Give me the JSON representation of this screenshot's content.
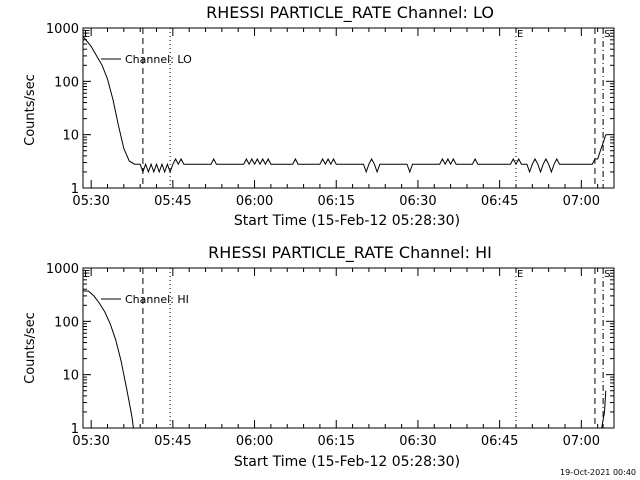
{
  "timestamp": "19-Oct-2021 00:40",
  "colors": {
    "background": "#ffffff",
    "foreground": "#000000"
  },
  "chart_data": [
    {
      "type": "line",
      "title": "RHESSI PARTICLE_RATE Channel: LO",
      "xlabel": "Start Time (15-Feb-12 05:28:30)",
      "ylabel": "Counts/sec",
      "legend": "Channel: LO",
      "legend_placement": "top-left",
      "yscale": "log",
      "ylim": [
        1,
        1000
      ],
      "xlim": [
        "05:28:30",
        "07:06:00"
      ],
      "x_ticks": [
        "05:30",
        "05:45",
        "06:00",
        "06:15",
        "06:30",
        "06:45",
        "07:00"
      ],
      "y_ticks": [
        "1",
        "10",
        "100",
        "1000"
      ],
      "markers": [
        {
          "label": "E",
          "time": "05:28:30",
          "style": "solid"
        },
        {
          "label": "",
          "time": "05:39:30",
          "style": "dashed"
        },
        {
          "label": "",
          "time": "05:44:30",
          "style": "dotted"
        },
        {
          "label": "E",
          "time": "06:48:00",
          "style": "dotted"
        },
        {
          "label": "",
          "time": "07:02:30",
          "style": "dashed"
        },
        {
          "label": "S",
          "time": "07:04:00",
          "style": "dash-dot"
        }
      ],
      "series": [
        {
          "name": "Channel: LO",
          "x": [
            "05:28:30",
            "05:30:00",
            "05:31:00",
            "05:32:00",
            "05:33:00",
            "05:34:00",
            "05:35:00",
            "05:36:00",
            "05:37:00",
            "05:38:00",
            "05:39:00",
            "05:39:30",
            "05:40:00",
            "05:40:30",
            "05:41:00",
            "05:41:30",
            "05:42:00",
            "05:42:30",
            "05:43:00",
            "05:43:30",
            "05:44:00",
            "05:44:30",
            "05:45:00",
            "05:45:30",
            "05:46:00",
            "05:46:30",
            "05:47:00",
            "05:52:00",
            "05:52:30",
            "05:53:00",
            "05:58:00",
            "05:58:30",
            "05:59:00",
            "05:59:30",
            "06:00:00",
            "06:00:30",
            "06:01:00",
            "06:01:30",
            "06:02:00",
            "06:02:30",
            "06:03:00",
            "06:07:00",
            "06:07:30",
            "06:08:00",
            "06:12:00",
            "06:12:30",
            "06:13:00",
            "06:13:30",
            "06:14:00",
            "06:14:30",
            "06:15:00",
            "06:20:00",
            "06:20:30",
            "06:21:00",
            "06:21:30",
            "06:22:00",
            "06:22:30",
            "06:23:00",
            "06:28:00",
            "06:28:30",
            "06:29:00",
            "06:34:00",
            "06:34:30",
            "06:35:00",
            "06:35:30",
            "06:36:00",
            "06:36:30",
            "06:37:00",
            "06:40:00",
            "06:40:30",
            "06:41:00",
            "06:47:00",
            "06:47:30",
            "06:48:00",
            "06:48:30",
            "06:49:00",
            "06:50:00",
            "06:50:30",
            "06:51:00",
            "06:51:30",
            "06:52:00",
            "06:52:30",
            "06:53:00",
            "06:53:30",
            "06:54:00",
            "06:54:30",
            "06:55:00",
            "06:55:30",
            "06:56:00",
            "07:02:00",
            "07:02:30",
            "07:03:00",
            "07:03:30",
            "07:04:00",
            "07:04:30"
          ],
          "values": [
            700,
            450,
            300,
            200,
            110,
            45,
            15,
            5.5,
            3.2,
            2.8,
            2.8,
            2.0,
            2.8,
            2.0,
            2.8,
            2.0,
            2.8,
            2.0,
            2.8,
            2.0,
            2.8,
            2.0,
            2.8,
            3.5,
            2.8,
            3.5,
            2.8,
            2.8,
            3.5,
            2.8,
            2.8,
            3.5,
            2.8,
            3.5,
            2.8,
            3.5,
            2.8,
            3.5,
            2.8,
            3.5,
            2.8,
            2.8,
            3.5,
            2.8,
            2.8,
            3.5,
            2.8,
            3.5,
            2.8,
            3.5,
            2.8,
            2.8,
            2.0,
            2.8,
            3.5,
            2.8,
            2.0,
            2.8,
            2.8,
            2.0,
            2.8,
            2.8,
            3.5,
            2.8,
            3.5,
            2.8,
            3.5,
            2.8,
            2.8,
            3.5,
            2.8,
            2.8,
            3.5,
            2.8,
            3.5,
            2.8,
            2.8,
            2.0,
            2.8,
            3.5,
            2.8,
            2.0,
            2.8,
            3.5,
            2.8,
            2.0,
            2.8,
            3.5,
            2.8,
            2.8,
            3.5,
            3.5,
            5,
            7,
            10
          ]
        }
      ]
    },
    {
      "type": "line",
      "title": "RHESSI PARTICLE_RATE Channel: HI",
      "xlabel": "Start Time (15-Feb-12 05:28:30)",
      "ylabel": "Counts/sec",
      "legend": "Channel: HI",
      "legend_placement": "top-left",
      "yscale": "log",
      "ylim": [
        1,
        1000
      ],
      "xlim": [
        "05:28:30",
        "07:06:00"
      ],
      "x_ticks": [
        "05:30",
        "05:45",
        "06:00",
        "06:15",
        "06:30",
        "06:45",
        "07:00"
      ],
      "y_ticks": [
        "1",
        "10",
        "100",
        "1000"
      ],
      "markers": [
        {
          "label": "E",
          "time": "05:28:30",
          "style": "solid"
        },
        {
          "label": "",
          "time": "05:39:30",
          "style": "dashed"
        },
        {
          "label": "",
          "time": "05:44:30",
          "style": "dotted"
        },
        {
          "label": "E",
          "time": "06:48:00",
          "style": "dotted"
        },
        {
          "label": "",
          "time": "07:02:30",
          "style": "dashed"
        },
        {
          "label": "S",
          "time": "07:04:00",
          "style": "dash-dot"
        }
      ],
      "series": [
        {
          "name": "Channel: HI",
          "x": [
            "05:28:30",
            "05:29:30",
            "05:30:30",
            "05:31:30",
            "05:32:30",
            "05:33:30",
            "05:34:30",
            "05:35:30",
            "05:36:00",
            "05:36:30",
            "05:37:00",
            "05:37:30",
            "05:37:45"
          ],
          "values": [
            370,
            370,
            300,
            220,
            150,
            90,
            45,
            18,
            10,
            5.5,
            3,
            1.6,
            1
          ]
        },
        {
          "name": "",
          "x": [
            "07:03:45",
            "07:04:15",
            "07:04:30"
          ],
          "values": [
            1,
            2,
            5
          ]
        }
      ]
    }
  ]
}
